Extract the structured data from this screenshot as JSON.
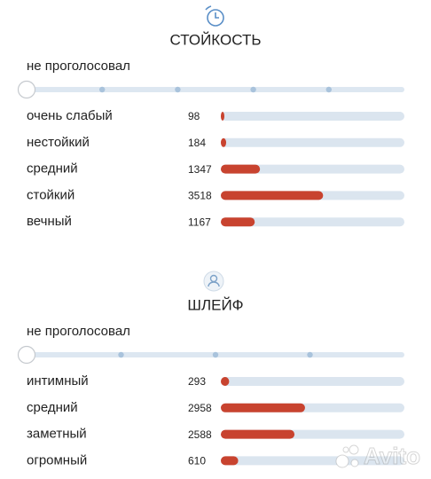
{
  "sections": [
    {
      "title": "СТОЙКОСТЬ",
      "no_vote": "не проголосовал",
      "options": [
        {
          "label": "очень слабый",
          "count": 98
        },
        {
          "label": "нестойкий",
          "count": 184
        },
        {
          "label": "средний",
          "count": 1347
        },
        {
          "label": "стойкий",
          "count": 3518
        },
        {
          "label": "вечный",
          "count": 1167
        }
      ]
    },
    {
      "title": "ШЛЕЙФ",
      "no_vote": "не проголосовал",
      "options": [
        {
          "label": "интимный",
          "count": 293
        },
        {
          "label": "средний",
          "count": 2958
        },
        {
          "label": "заметный",
          "count": 2588
        },
        {
          "label": "огромный",
          "count": 610
        }
      ]
    }
  ],
  "watermark": "Avito"
}
